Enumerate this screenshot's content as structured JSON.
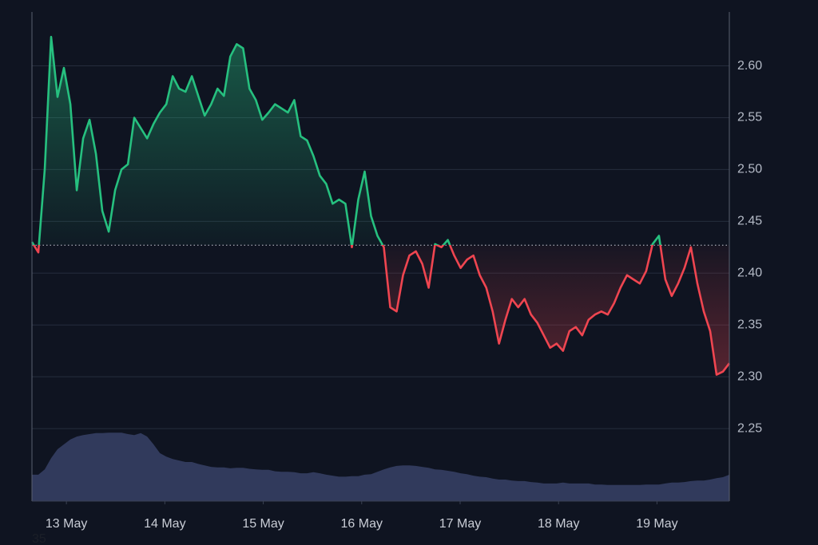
{
  "chart_data": {
    "type": "baseline-line",
    "annotation": "35",
    "x": [
      12.65,
      12.715,
      12.78,
      12.845,
      12.91,
      12.975,
      13.04,
      13.105,
      13.17,
      13.235,
      13.3,
      13.365,
      13.43,
      13.495,
      13.56,
      13.625,
      13.69,
      13.755,
      13.82,
      13.885,
      13.95,
      14.015,
      14.08,
      14.145,
      14.21,
      14.275,
      14.34,
      14.405,
      14.47,
      14.535,
      14.6,
      14.665,
      14.73,
      14.795,
      14.86,
      14.925,
      14.99,
      15.055,
      15.12,
      15.185,
      15.25,
      15.315,
      15.38,
      15.445,
      15.51,
      15.575,
      15.64,
      15.705,
      15.77,
      15.835,
      15.9,
      15.965,
      16.03,
      16.095,
      16.16,
      16.225,
      16.29,
      16.355,
      16.42,
      16.485,
      16.55,
      16.615,
      16.68,
      16.745,
      16.81,
      16.875,
      16.94,
      17.005,
      17.07,
      17.135,
      17.2,
      17.265,
      17.33,
      17.395,
      17.46,
      17.525,
      17.59,
      17.655,
      17.72,
      17.785,
      17.85,
      17.915,
      17.98,
      18.045,
      18.11,
      18.175,
      18.24,
      18.305,
      18.37,
      18.435,
      18.5,
      18.565,
      18.63,
      18.695,
      18.76,
      18.825,
      18.89,
      18.955,
      19.02,
      19.085,
      19.15,
      19.215,
      19.28,
      19.345,
      19.41,
      19.475,
      19.54,
      19.605,
      19.67,
      19.735
    ],
    "series": [
      {
        "name": "price",
        "up_color": "#26c07f",
        "down_color": "#ef4550",
        "values": [
          2.43,
          2.42,
          2.5,
          2.628,
          2.57,
          2.598,
          2.563,
          2.48,
          2.53,
          2.548,
          2.515,
          2.46,
          2.44,
          2.48,
          2.5,
          2.505,
          2.55,
          2.54,
          2.53,
          2.544,
          2.555,
          2.563,
          2.59,
          2.578,
          2.575,
          2.59,
          2.571,
          2.552,
          2.563,
          2.578,
          2.571,
          2.609,
          2.621,
          2.617,
          2.578,
          2.567,
          2.548,
          2.555,
          2.563,
          2.559,
          2.555,
          2.567,
          2.532,
          2.528,
          2.513,
          2.494,
          2.486,
          2.467,
          2.471,
          2.467,
          2.425,
          2.471,
          2.498,
          2.455,
          2.436,
          2.425,
          2.367,
          2.363,
          2.398,
          2.417,
          2.421,
          2.409,
          2.386,
          2.428,
          2.425,
          2.432,
          2.417,
          2.405,
          2.413,
          2.417,
          2.398,
          2.386,
          2.363,
          2.332,
          2.355,
          2.375,
          2.367,
          2.375,
          2.36,
          2.352,
          2.34,
          2.328,
          2.332,
          2.325,
          2.344,
          2.348,
          2.34,
          2.355,
          2.36,
          2.363,
          2.36,
          2.371,
          2.386,
          2.398,
          2.394,
          2.39,
          2.402,
          2.428,
          2.436,
          2.394,
          2.378,
          2.39,
          2.405,
          2.425,
          2.39,
          2.363,
          2.344,
          2.302,
          2.305,
          2.313
        ]
      },
      {
        "name": "volume",
        "axis": "y2",
        "color": "#313a5c",
        "values": [
          5.4,
          5.4,
          6.5,
          8.8,
          10.6,
          11.6,
          12.6,
          13.2,
          13.5,
          13.7,
          13.9,
          13.9,
          14.0,
          14.0,
          14.0,
          13.7,
          13.5,
          13.9,
          13.2,
          11.6,
          9.8,
          9.1,
          8.6,
          8.3,
          8.0,
          8.0,
          7.6,
          7.3,
          7.0,
          6.9,
          6.9,
          6.7,
          6.8,
          6.8,
          6.6,
          6.5,
          6.4,
          6.4,
          6.1,
          6.0,
          6.0,
          5.9,
          5.7,
          5.7,
          5.9,
          5.7,
          5.4,
          5.2,
          5.0,
          5.0,
          5.1,
          5.1,
          5.4,
          5.5,
          6.0,
          6.5,
          6.9,
          7.2,
          7.3,
          7.3,
          7.2,
          7.0,
          6.8,
          6.5,
          6.4,
          6.2,
          6.0,
          5.7,
          5.5,
          5.2,
          5.0,
          4.9,
          4.6,
          4.4,
          4.4,
          4.2,
          4.1,
          4.1,
          3.9,
          3.8,
          3.6,
          3.6,
          3.6,
          3.8,
          3.6,
          3.6,
          3.6,
          3.6,
          3.4,
          3.4,
          3.3,
          3.3,
          3.3,
          3.3,
          3.3,
          3.3,
          3.4,
          3.4,
          3.4,
          3.6,
          3.8,
          3.8,
          3.9,
          4.1,
          4.2,
          4.2,
          4.4,
          4.7,
          4.9,
          5.4
        ]
      }
    ],
    "baseline": 2.427,
    "xlim": [
      12.65,
      19.735
    ],
    "xticks": [
      {
        "value": 13,
        "label": "13 May"
      },
      {
        "value": 14,
        "label": "14 May"
      },
      {
        "value": 15,
        "label": "15 May"
      },
      {
        "value": 16,
        "label": "16 May"
      },
      {
        "value": 17,
        "label": "17 May"
      },
      {
        "value": 18,
        "label": "18 May"
      },
      {
        "value": 19,
        "label": "19 May"
      }
    ],
    "ylim": [
      2.18,
      2.652
    ],
    "yticks": [
      2.25,
      {
        "value": 2.3,
        "label": "2.30"
      },
      2.35,
      {
        "value": 2.4,
        "label": "2.40"
      },
      2.45,
      {
        "value": 2.5,
        "label": "2.50"
      },
      2.55,
      {
        "value": 2.6,
        "label": "2.60"
      }
    ],
    "y2lim": [
      0,
      100
    ],
    "grid": true
  }
}
